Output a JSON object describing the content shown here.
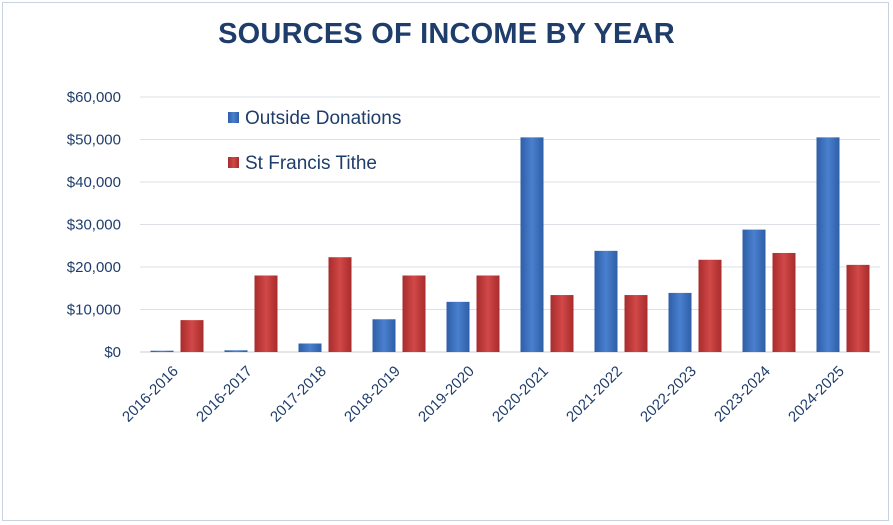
{
  "chart_data": {
    "type": "bar",
    "title": "SOURCES OF INCOME BY YEAR",
    "xlabel": "",
    "ylabel": "",
    "ylim": [
      0,
      60000
    ],
    "yticks": [
      "$0",
      "$10,000",
      "$20,000",
      "$30,000",
      "$40,000",
      "$50,000",
      "$60,000"
    ],
    "categories": [
      "2016-2016",
      "2016-2017",
      "2017-2018",
      "2018-2019",
      "2019-2020",
      "2020-2021",
      "2021-2022",
      "2022-2023",
      "2023-2024",
      "2024-2025"
    ],
    "series": [
      {
        "name": "Outside Donations",
        "color": "#3a6fc0",
        "values": [
          300,
          400,
          2000,
          7700,
          11800,
          50500,
          23800,
          13900,
          28800,
          50500
        ]
      },
      {
        "name": "St Francis Tithe",
        "color": "#c23a3a",
        "values": [
          7500,
          18000,
          22300,
          18000,
          18000,
          13400,
          13400,
          21700,
          23300,
          20500
        ]
      }
    ],
    "grid": true,
    "legend_position": "top-left"
  }
}
